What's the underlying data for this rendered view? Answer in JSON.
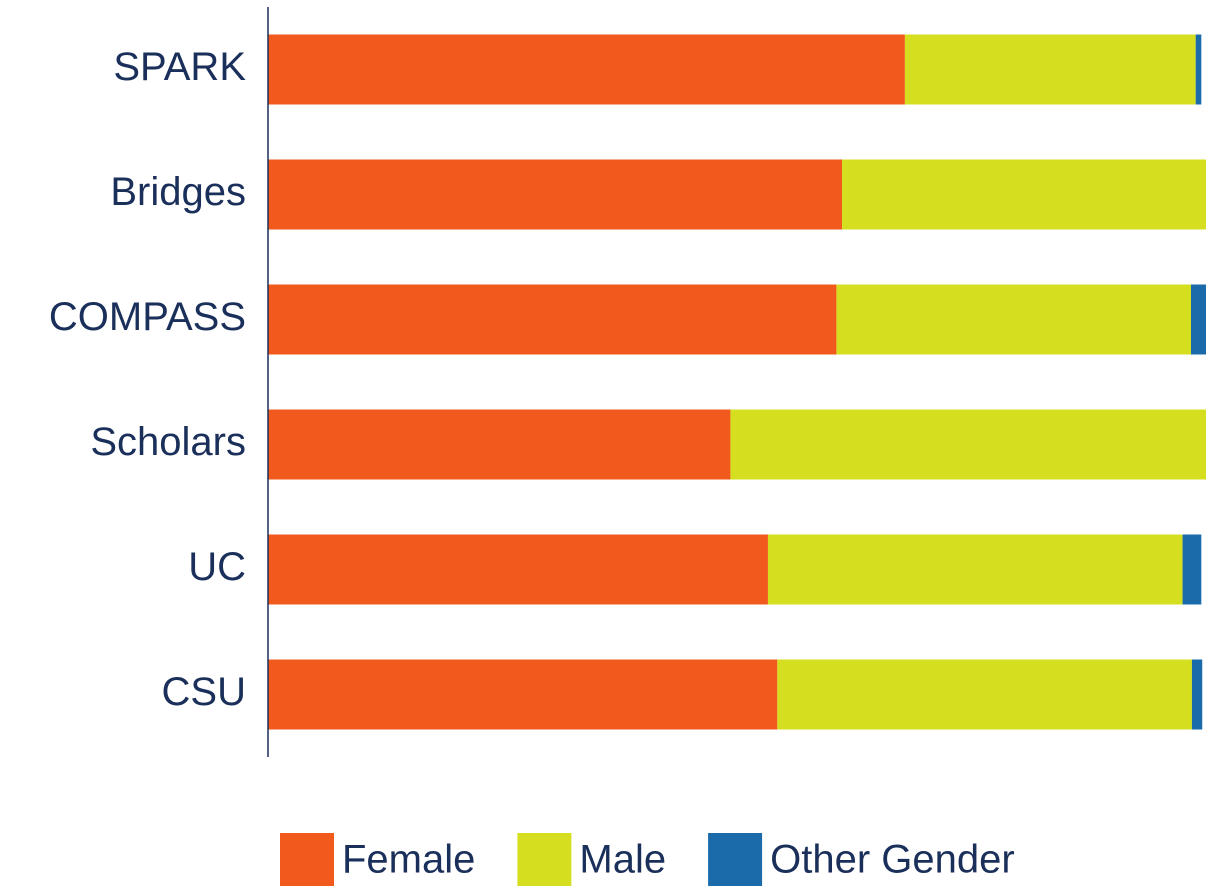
{
  "chart_data": {
    "type": "bar",
    "orientation": "horizontal",
    "stacked": true,
    "categories": [
      "SPARK",
      "Bridges",
      "COMPASS",
      "Scholars",
      "UC",
      "CSU"
    ],
    "series": [
      {
        "name": "Female",
        "color": "#f15a1c",
        "values": [
          67.9,
          61.2,
          60.6,
          49.3,
          53.3,
          54.3
        ]
      },
      {
        "name": "Male",
        "color": "#d5df20",
        "values": [
          31.0,
          38.8,
          37.8,
          50.7,
          44.2,
          44.2
        ]
      },
      {
        "name": "Other Gender",
        "color": "#1b6bab",
        "values": [
          0.6,
          0,
          1.6,
          0,
          2.0,
          1.1
        ]
      }
    ],
    "xlim": [
      0,
      100
    ],
    "legend": "bottom"
  }
}
